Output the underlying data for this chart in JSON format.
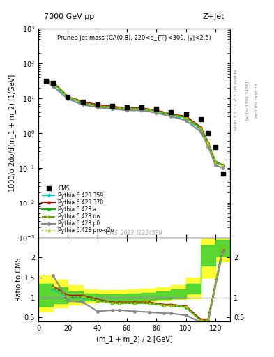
{
  "title_top": "7000 GeV pp",
  "title_right": "Z+Jet",
  "annotation": "Pruned jet mass (CA(0.8), 220<p_{T}<300, |y|<2.5)",
  "cms_label": "CMS_2013_I1224539",
  "rivet_label": "Rivet 3.1.10, ≥ 3.1M events",
  "arxiv_label": "[arXiv:1306.3436]",
  "mcplot_label": "mcplots.cern.ch",
  "xlabel": "(m_1 + m_2) / 2 [GeV]",
  "ylabel_main": "1000/σ 2dσ/d(m_1 + m_2) [1/GeV]",
  "ylabel_ratio": "Ratio to CMS",
  "xdata": [
    5,
    10,
    20,
    30,
    40,
    50,
    60,
    70,
    80,
    90,
    100,
    110,
    115,
    120,
    125
  ],
  "cms_data": [
    32,
    28,
    11,
    8,
    6.5,
    6,
    5.5,
    5.5,
    5,
    4,
    3.5,
    2.5,
    1.0,
    0.4,
    0.07
  ],
  "py359_data": [
    32,
    24,
    10,
    7,
    5.5,
    5,
    4.5,
    4.5,
    4,
    3.2,
    2.5,
    1.3,
    0.5,
    0.15,
    0.12
  ],
  "py370_data": [
    32,
    29,
    11,
    8,
    6.5,
    5.8,
    5.2,
    5.2,
    4.5,
    3.5,
    3.0,
    1.5,
    0.55,
    0.15,
    0.12
  ],
  "pya_data": [
    32,
    28,
    11,
    7.5,
    6.0,
    5.5,
    5.0,
    5.0,
    4.3,
    3.4,
    2.8,
    1.4,
    0.52,
    0.15,
    0.12
  ],
  "pydw_data": [
    32,
    28,
    11,
    7.5,
    6.0,
    5.5,
    5.0,
    5.0,
    4.3,
    3.4,
    2.8,
    1.4,
    0.52,
    0.15,
    0.12
  ],
  "pyp0_data": [
    30,
    22,
    9.5,
    6.5,
    5.5,
    5.0,
    4.5,
    4.5,
    3.8,
    3.0,
    2.3,
    1.1,
    0.42,
    0.12,
    0.1
  ],
  "pyproq2o_data": [
    32,
    28,
    11,
    7.5,
    6.0,
    5.5,
    5.0,
    5.0,
    4.3,
    3.4,
    2.8,
    1.4,
    0.52,
    0.15,
    0.12
  ],
  "ratio_xdata": [
    10,
    20,
    30,
    40,
    50,
    55,
    65,
    75,
    85,
    90,
    100,
    110,
    115,
    125
  ],
  "ratio_py359": [
    1.2,
    1.0,
    1.0,
    0.92,
    0.85,
    0.85,
    0.85,
    0.85,
    0.8,
    0.8,
    0.75,
    0.42,
    0.42,
    2.2
  ],
  "ratio_py370": [
    1.28,
    1.05,
    1.05,
    0.95,
    0.88,
    0.88,
    0.88,
    0.88,
    0.82,
    0.82,
    0.78,
    0.45,
    0.45,
    2.2
  ],
  "ratio_pya": [
    1.25,
    1.02,
    1.02,
    0.93,
    0.86,
    0.86,
    0.86,
    0.86,
    0.8,
    0.8,
    0.76,
    0.42,
    0.42,
    2.25
  ],
  "ratio_pydw": [
    1.25,
    1.02,
    1.02,
    0.93,
    0.86,
    0.86,
    0.86,
    0.86,
    0.8,
    0.8,
    0.76,
    0.42,
    0.42,
    2.25
  ],
  "ratio_pyp0": [
    1.55,
    0.92,
    0.88,
    0.65,
    0.68,
    0.68,
    0.65,
    0.63,
    0.6,
    0.6,
    0.55,
    0.38,
    0.38,
    2.15
  ],
  "ratio_pyproq2o": [
    1.25,
    1.02,
    1.02,
    0.93,
    0.86,
    0.86,
    0.86,
    0.86,
    0.8,
    0.8,
    0.76,
    0.42,
    0.42,
    2.25
  ],
  "band_xedges": [
    0,
    10,
    20,
    30,
    40,
    50,
    60,
    70,
    80,
    90,
    100,
    110,
    120,
    130
  ],
  "band_yellow_lo": [
    0.65,
    0.75,
    0.82,
    0.87,
    0.88,
    0.88,
    0.88,
    0.9,
    0.92,
    0.95,
    0.98,
    1.5,
    1.9
  ],
  "band_yellow_hi": [
    1.55,
    1.45,
    1.3,
    1.2,
    1.18,
    1.18,
    1.2,
    1.22,
    1.25,
    1.3,
    1.5,
    2.5,
    2.6
  ],
  "band_green_lo": [
    0.78,
    0.85,
    0.9,
    0.92,
    0.93,
    0.93,
    0.93,
    0.94,
    0.96,
    0.98,
    1.1,
    1.8,
    2.05
  ],
  "band_green_hi": [
    1.35,
    1.25,
    1.15,
    1.1,
    1.08,
    1.08,
    1.1,
    1.12,
    1.15,
    1.2,
    1.35,
    2.3,
    2.45
  ],
  "color_cms": "#000000",
  "color_py359": "#00cccc",
  "color_py370": "#cc0000",
  "color_pya": "#00bb00",
  "color_pydw": "#669900",
  "color_pyp0": "#888888",
  "color_pyproq2o": "#aacc00",
  "ylim_main": [
    0.001,
    1000.0
  ],
  "ylim_ratio": [
    0.4,
    2.5
  ],
  "xlim": [
    0,
    130
  ]
}
